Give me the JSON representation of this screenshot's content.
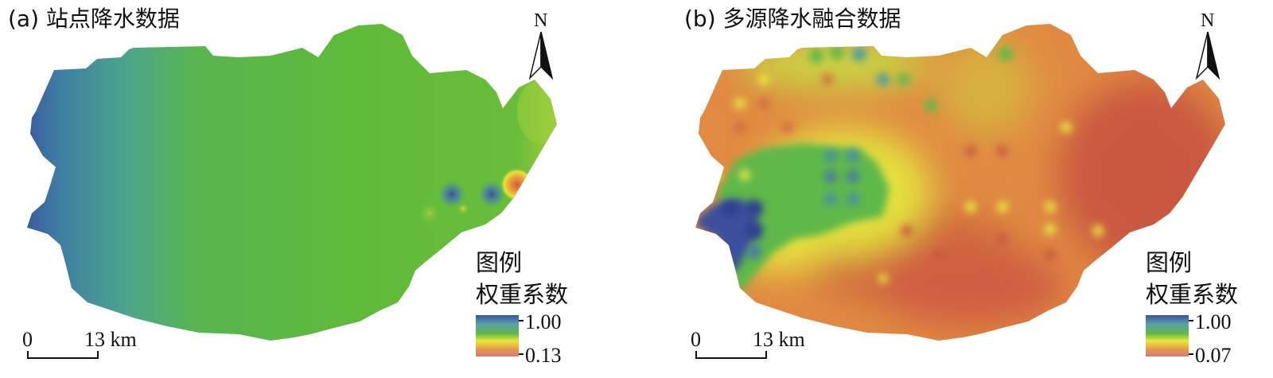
{
  "panels": [
    {
      "title": "(a) 站点降水数据",
      "north_label": "N",
      "legend": {
        "heading": "图例",
        "subheading": "权重系数",
        "max_label": "1.00",
        "min_label": "0.13"
      },
      "scale": {
        "zero": "0",
        "max": "13 km"
      }
    },
    {
      "title": "(b) 多源降水融合数据",
      "north_label": "N",
      "legend": {
        "heading": "图例",
        "subheading": "权重系数",
        "max_label": "1.00",
        "min_label": "0.07"
      },
      "scale": {
        "zero": "0",
        "max": "13 km"
      }
    }
  ],
  "colors": {
    "ramp_high": "#3a53a4",
    "ramp_mid_teal": "#5aa0a6",
    "ramp_mid_green": "#61b847",
    "ramp_mid_yellow": "#e8e93a",
    "ramp_mid_orange": "#e79a4b",
    "ramp_low": "#d47a7a"
  }
}
